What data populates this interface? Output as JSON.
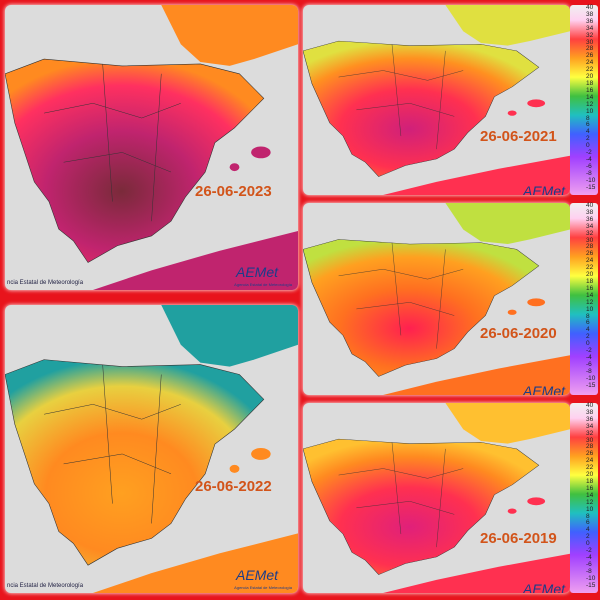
{
  "panels": [
    {
      "date": "26-06-2023",
      "credit": "ncia Estatal de Meteorología",
      "logo": "AEMet",
      "logo_caption": "Agencia Estatal de Meteorología"
    },
    {
      "date": "26-06-2022",
      "credit": "ncia Estatal de Meteorología",
      "logo": "AEMet",
      "logo_caption": "Agencia Estatal de Meteorología"
    },
    {
      "date": "26-06-2021",
      "logo": "AEMet"
    },
    {
      "date": "26-06-2020",
      "logo": "AEMet"
    },
    {
      "date": "26-06-2019",
      "logo": "AEMet"
    }
  ],
  "scale": {
    "labels": [
      "40",
      "38",
      "36",
      "34",
      "32",
      "30",
      "28",
      "26",
      "24",
      "22",
      "20",
      "18",
      "16",
      "14",
      "12",
      "10",
      "8",
      "6",
      "4",
      "2",
      "0",
      "-2",
      "-4",
      "-6",
      "-8",
      "-10",
      "-15"
    ]
  }
}
